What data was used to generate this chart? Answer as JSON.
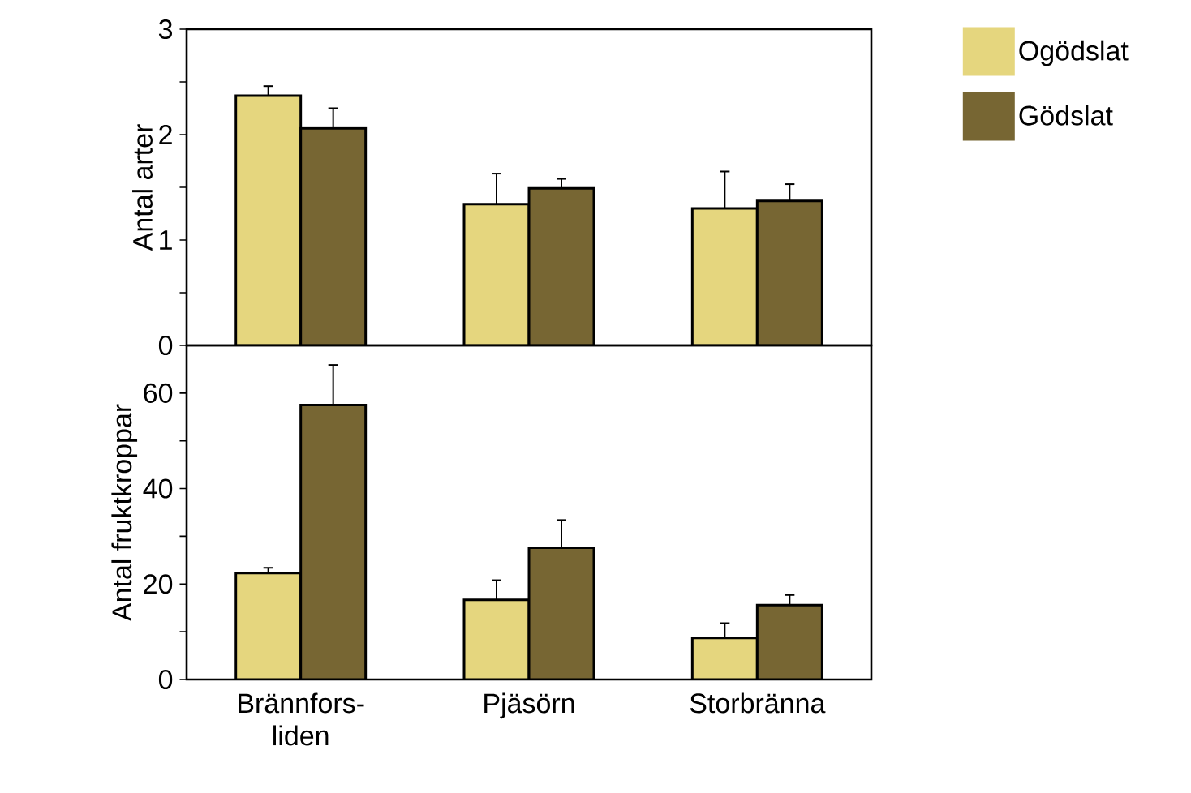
{
  "chart_data": [
    {
      "type": "bar",
      "ylabel": "Antal arter",
      "ylim": [
        0,
        3
      ],
      "yticks": [
        0,
        {
          "value": 0.5,
          "label": null
        },
        1,
        {
          "value": 1.5,
          "label": null
        },
        2,
        {
          "value": 2.5,
          "label": null
        },
        3
      ],
      "tick_labels": "y",
      "legend": "right",
      "series": [
        {
          "name": "Ogödslat",
          "color": "#e5d67e",
          "values": [
            2.37,
            1.34,
            1.3
          ],
          "errors": [
            [
              2.37,
              2.46
            ],
            [
              1.34,
              1.63
            ],
            [
              1.3,
              1.65
            ]
          ]
        },
        {
          "name": "Gödslat",
          "color": "#776633",
          "values": [
            2.06,
            1.49,
            1.37
          ],
          "errors": [
            [
              2.06,
              2.25
            ],
            [
              1.49,
              1.58
            ],
            [
              1.37,
              1.53
            ]
          ]
        }
      ]
    },
    {
      "type": "bar",
      "categories": [
        "Brännfors-liden",
        "Pjäsörn",
        "Storbränna"
      ],
      "ylabel": "Antal fruktkroppar",
      "ylim": [
        0,
        70
      ],
      "yticks": [
        0,
        {
          "value": 10,
          "label": null
        },
        20,
        {
          "value": 30,
          "label": null
        },
        40,
        {
          "value": 50,
          "label": null
        },
        60
      ],
      "series": [
        {
          "color": "#e5d67e",
          "values": [
            22.3,
            16.7,
            8.7
          ],
          "errors": [
            [
              22.3,
              23.4
            ],
            [
              16.7,
              20.8
            ],
            [
              8.7,
              11.8
            ]
          ]
        },
        {
          "color": "#776633",
          "values": [
            57.5,
            27.6,
            15.6
          ],
          "errors": [
            [
              57.5,
              65.9
            ],
            [
              27.6,
              33.4
            ],
            [
              15.6,
              17.7
            ]
          ]
        }
      ]
    }
  ]
}
